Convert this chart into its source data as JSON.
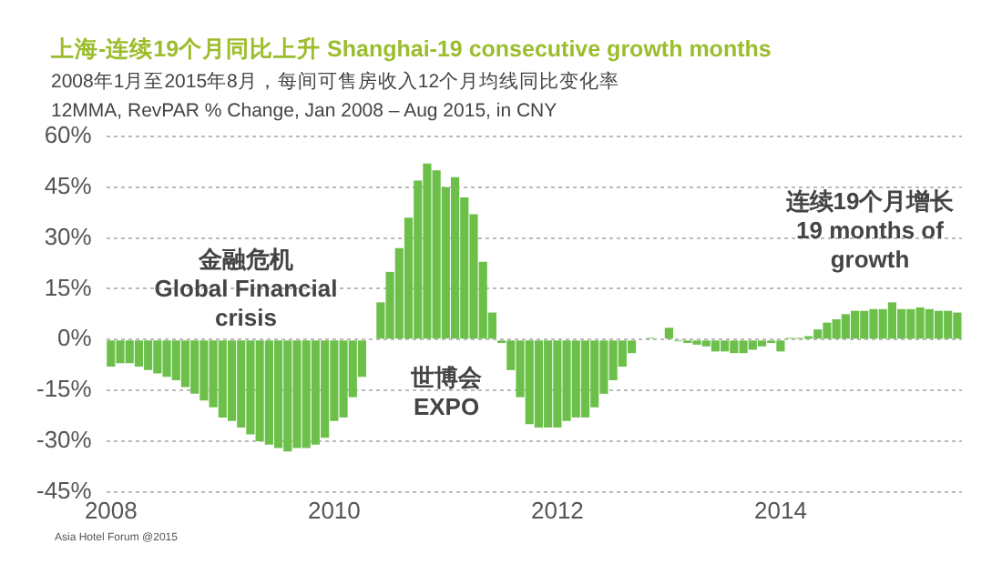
{
  "chart_data": {
    "type": "bar",
    "title": "上海-连续19个月同比上升 Shanghai-19 consecutive growth months",
    "subtitle": "2008年1月至2015年8月，每间可售房收入12个月均线同比变化率\n12MMA, RevPAR % Change, Jan 2008 – Aug 2015, in CNY",
    "categories": [
      "2008",
      null,
      null,
      null,
      null,
      null,
      null,
      null,
      null,
      null,
      null,
      null,
      null,
      null,
      null,
      null,
      null,
      null,
      null,
      null,
      null,
      null,
      null,
      null,
      "2010",
      null,
      null,
      null,
      null,
      null,
      null,
      null,
      null,
      null,
      null,
      null,
      null,
      null,
      null,
      null,
      null,
      null,
      null,
      null,
      null,
      null,
      null,
      null,
      "2012",
      null,
      null,
      null,
      null,
      null,
      null,
      null,
      null,
      null,
      null,
      null,
      null,
      null,
      null,
      null,
      null,
      null,
      null,
      null,
      null,
      null,
      null,
      null,
      "2014",
      null,
      null,
      null,
      null,
      null,
      null,
      null,
      null,
      null,
      null,
      null,
      null,
      null,
      null,
      null,
      null,
      null,
      null,
      null
    ],
    "values": [
      -8,
      -7,
      -7,
      -8,
      -9,
      -10,
      -11,
      -12,
      -14,
      -16,
      -18,
      -20,
      -23,
      -24,
      -26,
      -28,
      -30,
      -31,
      -32,
      -33,
      -32,
      -32,
      -31,
      -29,
      -24,
      -23,
      -17,
      -11,
      0,
      11,
      20,
      27,
      36,
      47,
      52,
      50,
      45,
      48,
      42,
      37,
      23,
      8,
      -1,
      -9,
      -17,
      -25,
      -26,
      -26,
      -26,
      -24,
      -23,
      -23,
      -20,
      -16,
      -12,
      -8,
      -4,
      0,
      0.5,
      0,
      3.5,
      -0.5,
      -1,
      -1.5,
      -2,
      -3.5,
      -3.5,
      -4,
      -4,
      -3,
      -2,
      -1,
      -3.5,
      0.5,
      0.5,
      1,
      3,
      5,
      6,
      7.5,
      8.5,
      8.5,
      9,
      9,
      11,
      9,
      9,
      9.5,
      9,
      8.5,
      8.5,
      8
    ],
    "color": "#6cc04a",
    "ylim": [
      -45,
      60
    ],
    "yticks": [
      {
        "value": -45,
        "label": "-45%"
      },
      {
        "value": -30,
        "label": "-30%"
      },
      {
        "value": -15,
        "label": "-15%"
      },
      {
        "value": 0,
        "label": "0%"
      },
      {
        "value": 15,
        "label": "15%"
      },
      {
        "value": 30,
        "label": "30%"
      },
      {
        "value": 45,
        "label": "45%"
      },
      {
        "value": 60,
        "label": "60%"
      }
    ],
    "grid": "y",
    "legend": false,
    "annotations": [
      "金融危机\nGlobal Financial\ncrisis",
      "世博会\nEXPO",
      "连续19个月增长\n19 months of\ngrowth",
      "Asia Hotel Forum @2015"
    ]
  }
}
